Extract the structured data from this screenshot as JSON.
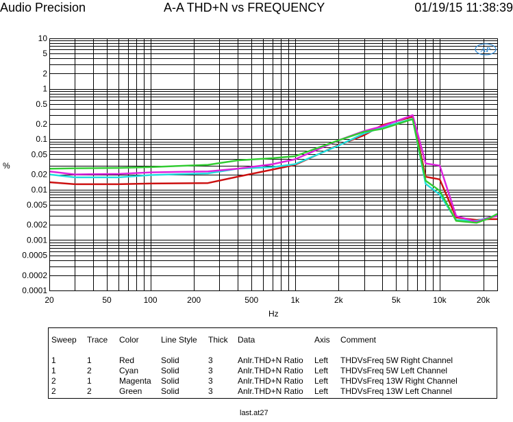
{
  "header": {
    "brand": "Audio Precision",
    "title": "A-A THD+N vs FREQUENCY",
    "timestamp": "01/19/15 11:38:39"
  },
  "chart_data": {
    "type": "line",
    "title": "A-A THD+N vs FREQUENCY",
    "xlabel": "Hz",
    "ylabel": "%",
    "xscale": "log",
    "yscale": "log",
    "xlim": [
      20,
      25000
    ],
    "ylim": [
      0.0001,
      10
    ],
    "grid": true,
    "x_ticks": [
      {
        "value": 20,
        "label": "20"
      },
      {
        "value": 50,
        "label": "50"
      },
      {
        "value": 100,
        "label": "100"
      },
      {
        "value": 200,
        "label": "200"
      },
      {
        "value": 500,
        "label": "500"
      },
      {
        "value": 1000,
        "label": "1k"
      },
      {
        "value": 2000,
        "label": "2k"
      },
      {
        "value": 5000,
        "label": "5k"
      },
      {
        "value": 10000,
        "label": "10k"
      },
      {
        "value": 20000,
        "label": "20k"
      }
    ],
    "y_ticks": [
      {
        "value": 10,
        "label": "10"
      },
      {
        "value": 5,
        "label": "5"
      },
      {
        "value": 2,
        "label": "2"
      },
      {
        "value": 1,
        "label": "1"
      },
      {
        "value": 0.5,
        "label": "0.5"
      },
      {
        "value": 0.2,
        "label": "0.2"
      },
      {
        "value": 0.1,
        "label": "0.1"
      },
      {
        "value": 0.05,
        "label": "0.05"
      },
      {
        "value": 0.02,
        "label": "0.02"
      },
      {
        "value": 0.01,
        "label": "0.01"
      },
      {
        "value": 0.005,
        "label": "0.005"
      },
      {
        "value": 0.002,
        "label": "0.002"
      },
      {
        "value": 0.001,
        "label": "0.001"
      },
      {
        "value": 0.0005,
        "label": "0.0005"
      },
      {
        "value": 0.0002,
        "label": "0.0002"
      },
      {
        "value": 0.0001,
        "label": "0.0001"
      }
    ],
    "series": [
      {
        "name": "THDVsFreq 5W Right Channel",
        "color": "#cc1111",
        "x": [
          20,
          30,
          60,
          100,
          250,
          400,
          700,
          1000,
          2000,
          3000,
          4000,
          6500,
          8000,
          10000,
          13000,
          18000,
          22000,
          25000
        ],
        "y": [
          0.014,
          0.0128,
          0.0128,
          0.0132,
          0.0135,
          0.018,
          0.025,
          0.031,
          0.077,
          0.12,
          0.19,
          0.28,
          0.018,
          0.016,
          0.0028,
          0.0025,
          0.0026,
          0.0026
        ]
      },
      {
        "name": "THDVsFreq 5W Left Channel",
        "color": "#22dddd",
        "x": [
          20,
          30,
          60,
          100,
          250,
          400,
          700,
          1000,
          2000,
          3000,
          4000,
          6500,
          8000,
          10000,
          13000,
          18000,
          22000,
          25000
        ],
        "y": [
          0.02,
          0.0175,
          0.0175,
          0.0195,
          0.021,
          0.026,
          0.028,
          0.032,
          0.075,
          0.13,
          0.17,
          0.255,
          0.013,
          0.008,
          0.0025,
          0.0024,
          0.0028,
          0.0032
        ]
      },
      {
        "name": "THDVsFreq 13W Right Channel",
        "color": "#dd22dd",
        "x": [
          20,
          30,
          60,
          100,
          250,
          400,
          700,
          1000,
          2000,
          3000,
          4000,
          6500,
          8000,
          10000,
          13000,
          18000,
          22000,
          25000
        ],
        "y": [
          0.023,
          0.02,
          0.0205,
          0.022,
          0.023,
          0.026,
          0.032,
          0.04,
          0.095,
          0.145,
          0.18,
          0.3,
          0.033,
          0.03,
          0.003,
          0.0023,
          0.0028,
          0.003
        ]
      },
      {
        "name": "THDVsFreq 13W Left Channel",
        "color": "#33cc33",
        "x": [
          20,
          30,
          60,
          100,
          250,
          400,
          700,
          1000,
          2000,
          3000,
          4000,
          6500,
          8000,
          10000,
          13000,
          18000,
          22000,
          25000
        ],
        "y": [
          0.026,
          0.0265,
          0.027,
          0.028,
          0.031,
          0.038,
          0.042,
          0.046,
          0.095,
          0.14,
          0.16,
          0.25,
          0.015,
          0.0095,
          0.0024,
          0.0022,
          0.0027,
          0.0033
        ]
      }
    ]
  },
  "legend": {
    "headers": {
      "sweep": "Sweep",
      "trace": "Trace",
      "color": "Color",
      "line_style": "Line Style",
      "thick": "Thick",
      "data": "Data",
      "axis": "Axis",
      "comment": "Comment"
    },
    "rows": [
      {
        "sweep": "1",
        "trace": "1",
        "color": "Red",
        "line_style": "Solid",
        "thick": "3",
        "data": "Anlr.THD+N Ratio",
        "axis": "Left",
        "comment": "THDVsFreq 5W Right Channel"
      },
      {
        "sweep": "1",
        "trace": "2",
        "color": "Cyan",
        "line_style": "Solid",
        "thick": "3",
        "data": "Anlr.THD+N Ratio",
        "axis": "Left",
        "comment": "THDVsFreq 5W Left Channel"
      },
      {
        "sweep": "2",
        "trace": "1",
        "color": "Magenta",
        "line_style": "Solid",
        "thick": "3",
        "data": "Anlr.THD+N Ratio",
        "axis": "Left",
        "comment": "THDVsFreq 13W Right Channel"
      },
      {
        "sweep": "2",
        "trace": "2",
        "color": "Green",
        "line_style": "Solid",
        "thick": "3",
        "data": "Anlr.THD+N Ratio",
        "axis": "Left",
        "comment": "THDVsFreq 13W Left Channel"
      }
    ]
  },
  "footer": {
    "filename": "last.at27"
  },
  "logo": {
    "text": "AP"
  }
}
